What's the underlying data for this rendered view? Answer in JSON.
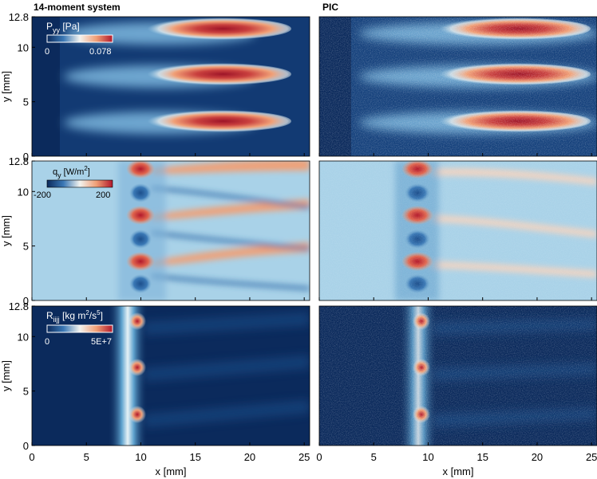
{
  "titles": {
    "left": "14-moment system",
    "right": "PIC"
  },
  "xlabel": "x [mm]",
  "ylabel": "y [mm]",
  "x_ticks": [
    "0",
    "5",
    "10",
    "15",
    "20",
    "25"
  ],
  "y_ticks": [
    "0",
    "5",
    "10",
    "12.8"
  ],
  "colorbars": [
    {
      "label": "P",
      "sub": "yy",
      "unit": " [Pa]",
      "min": "0",
      "max": "0.078"
    },
    {
      "label": "q",
      "sub": "y",
      "unit": " [W/m",
      "sup": "2",
      "unit_end": "]",
      "min": "-200",
      "max": "200"
    },
    {
      "label": "R",
      "sub": "iijj",
      "unit": " [kg m",
      "sup": "2",
      "unit_mid": "/s",
      "sup2": "5",
      "unit_end": "]",
      "min": "0",
      "max": "5E+7"
    }
  ],
  "colors": {
    "dark": "#0b2a5c",
    "mid": "#3a78b5",
    "light": "#a9d2e8",
    "white": "#f3f3ef",
    "orange": "#f0a077",
    "red": "#b2182b"
  },
  "chart_data": [
    {
      "type": "heatmap",
      "panel": "P_yy 14-moment system",
      "xlim": [
        0,
        25.5
      ],
      "ylim": [
        0,
        12.8
      ],
      "zlim": [
        0,
        0.078
      ],
      "features": [
        {
          "kind": "elongated high-pressure lobe",
          "y_centers": [
            2.7,
            7.2,
            11.7
          ],
          "x_range": [
            11,
            22
          ],
          "peak": 0.078
        }
      ]
    },
    {
      "type": "heatmap",
      "panel": "P_yy PIC",
      "xlim": [
        0,
        25.5
      ],
      "ylim": [
        0,
        12.8
      ],
      "zlim": [
        0,
        0.078
      ],
      "features": [
        {
          "kind": "elongated high-pressure lobe",
          "y_centers": [
            2.7,
            7.2,
            11.7
          ],
          "x_range": [
            11,
            24
          ],
          "peak": 0.078
        }
      ]
    },
    {
      "type": "heatmap",
      "panel": "q_y 14-moment system",
      "xlim": [
        0,
        25.5
      ],
      "ylim": [
        0,
        12.8
      ],
      "zlim": [
        -200,
        200
      ],
      "features": [
        {
          "kind": "positive heat flux spot",
          "x": 9.5,
          "y_centers": [
            3.7,
            8.2,
            12.7
          ]
        },
        {
          "kind": "negative heat flux spot",
          "x": 9.5,
          "y_centers": [
            1.8,
            6.3,
            10.8
          ]
        }
      ]
    },
    {
      "type": "heatmap",
      "panel": "q_y PIC",
      "xlim": [
        0,
        25.5
      ],
      "ylim": [
        0,
        12.8
      ],
      "zlim": [
        -200,
        200
      ],
      "features": [
        {
          "kind": "positive heat flux spot",
          "x": 9.5,
          "y_centers": [
            3.7,
            8.2,
            12.7
          ]
        },
        {
          "kind": "negative heat flux spot",
          "x": 9.5,
          "y_centers": [
            1.8,
            6.3,
            10.8
          ]
        }
      ]
    },
    {
      "type": "heatmap",
      "panel": "R_iijj 14-moment system",
      "xlim": [
        0,
        25.5
      ],
      "ylim": [
        0,
        12.8
      ],
      "zlim": [
        0,
        50000000.0
      ],
      "features": [
        {
          "kind": "bright column",
          "x": 9.5
        },
        {
          "kind": "hot spot",
          "x": 9.5,
          "y_centers": [
            2.8,
            7.3,
            11.8
          ]
        }
      ]
    },
    {
      "type": "heatmap",
      "panel": "R_iijj PIC",
      "xlim": [
        0,
        25.5
      ],
      "ylim": [
        0,
        12.8
      ],
      "zlim": [
        0,
        50000000.0
      ],
      "features": [
        {
          "kind": "bright column",
          "x": 9.0
        },
        {
          "kind": "hot spot",
          "x": 9.2,
          "y_centers": [
            2.8,
            7.3,
            11.8
          ]
        }
      ]
    }
  ]
}
